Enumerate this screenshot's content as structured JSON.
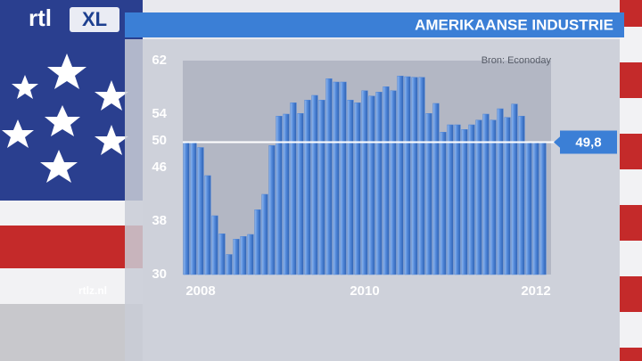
{
  "branding": {
    "logo": "rtl",
    "logo_badge": "XL",
    "website": "rtlz.nl"
  },
  "chart_data": {
    "type": "bar",
    "title": "AMERIKAANSE INDUSTRIE",
    "source": "Bron: Econoday",
    "categories": [
      null,
      null,
      "2008",
      null,
      null,
      null,
      null,
      null,
      null,
      null,
      null,
      null,
      null,
      null,
      null,
      null,
      null,
      null,
      null,
      null,
      null,
      null,
      null,
      null,
      null,
      "2010",
      null,
      null,
      null,
      null,
      null,
      null,
      null,
      null,
      null,
      null,
      null,
      null,
      null,
      null,
      null,
      null,
      null,
      null,
      null,
      null,
      null,
      null,
      null,
      "2012",
      null
    ],
    "values": [
      49.7,
      49.7,
      49.0,
      44.8,
      38.8,
      36.1,
      33.0,
      35.3,
      35.7,
      36.0,
      39.7,
      42.0,
      49.3,
      53.7,
      54.0,
      55.7,
      54.1,
      56.1,
      56.8,
      56.1,
      59.3,
      58.8,
      58.8,
      56.1,
      55.7,
      57.5,
      56.7,
      57.3,
      58.1,
      57.5,
      59.7,
      59.6,
      59.5,
      59.5,
      54.1,
      55.6,
      51.3,
      52.4,
      52.4,
      51.7,
      52.4,
      53.1,
      54.0,
      53.1,
      54.8,
      53.5,
      55.5,
      53.7,
      49.8,
      49.8,
      49.8
    ],
    "color": "#4f86d8",
    "ylim": [
      30,
      62
    ],
    "yticks": [
      62,
      54,
      50,
      46,
      38,
      30
    ],
    "reference": {
      "value": 49.8,
      "label": "49,8"
    }
  }
}
